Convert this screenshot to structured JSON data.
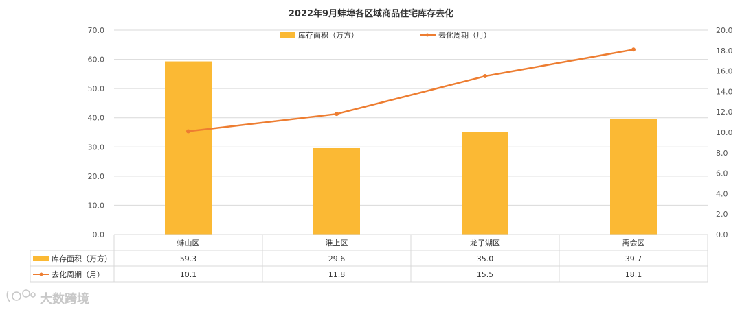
{
  "chart_data": {
    "type": "bar",
    "title": "2022年9月蚌埠各区域商品住宅库存去化",
    "categories": [
      "蚌山区",
      "淮上区",
      "龙子湖区",
      "禹会区"
    ],
    "series": [
      {
        "name": "库存面积（万方）",
        "type": "bar",
        "axis": "left",
        "color": "#FBB934",
        "values": [
          59.3,
          29.6,
          35.0,
          39.7
        ]
      },
      {
        "name": "去化周期（月）",
        "type": "line",
        "axis": "right",
        "color": "#ED7D31",
        "values": [
          10.1,
          11.8,
          15.5,
          18.1
        ]
      }
    ],
    "y_left": {
      "min": 0,
      "max": 70,
      "step": 10,
      "ticks": [
        "0.0",
        "10.0",
        "20.0",
        "30.0",
        "40.0",
        "50.0",
        "60.0",
        "70.0"
      ]
    },
    "y_right": {
      "min": 0,
      "max": 20,
      "step": 2,
      "ticks": [
        "0.0",
        "2.0",
        "4.0",
        "6.0",
        "8.0",
        "10.0",
        "12.0",
        "14.0",
        "16.0",
        "18.0",
        "20.0"
      ]
    },
    "grid": true,
    "legend_position": "top-center",
    "data_table": {
      "rows": [
        {
          "label": "库存面积（万方）",
          "values": [
            "59.3",
            "29.6",
            "35.0",
            "39.7"
          ]
        },
        {
          "label": "去化周期（月）",
          "values": [
            "10.1",
            "11.8",
            "15.5",
            "18.1"
          ]
        }
      ]
    }
  },
  "watermark": "大数跨境"
}
